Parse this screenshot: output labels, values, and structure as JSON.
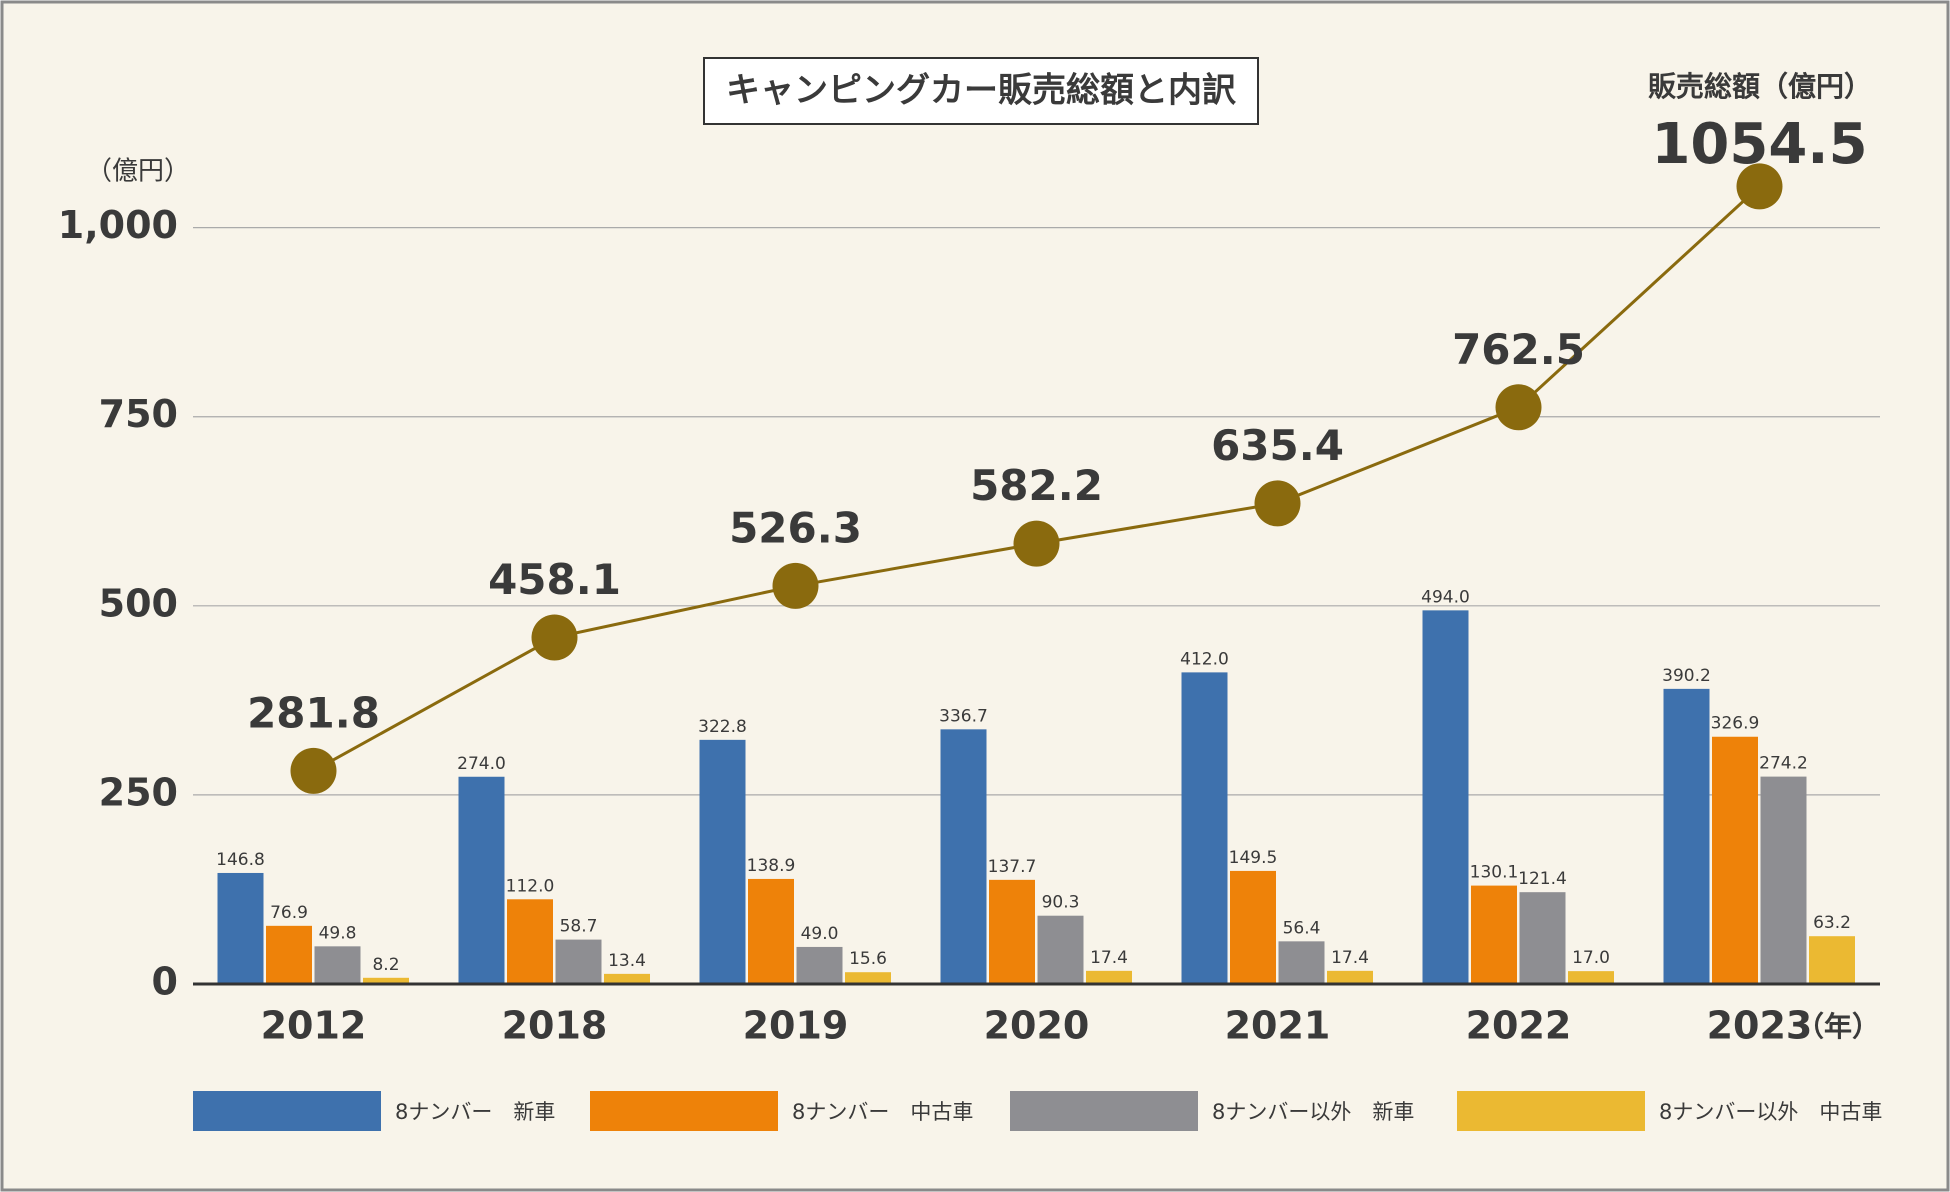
{
  "chart_data": {
    "type": "bar",
    "title": "キャンピングカー販売総額と内訳",
    "y_unit": "（億円）",
    "x_unit": "（年）",
    "categories": [
      "2012",
      "2018",
      "2019",
      "2020",
      "2021",
      "2022",
      "2023"
    ],
    "series": [
      {
        "name": "8ナンバー　新車",
        "color": "#3e71ad",
        "values": [
          146.8,
          274,
          322.8,
          336.7,
          412,
          494,
          390.2
        ],
        "value_labels": [
          "146.8",
          "274.0",
          "322.8",
          "336.7",
          "412.0",
          "494.0",
          "390.2"
        ]
      },
      {
        "name": "8ナンバー　中古車",
        "color": "#ee8209",
        "values": [
          76.9,
          112,
          138.9,
          137.7,
          149.5,
          130.1,
          326.9
        ],
        "value_labels": [
          "76.9",
          "112.0",
          "138.9",
          "137.7",
          "149.5",
          "130.1",
          "326.9"
        ]
      },
      {
        "name": "8ナンバー以外　新車",
        "color": "#8e8e92",
        "values": [
          49.8,
          58.7,
          49,
          90.3,
          56.4,
          121.4,
          274.2
        ],
        "value_labels": [
          "49.8",
          "58.7",
          "49.0",
          "90.3",
          "56.4",
          "121.4",
          "274.2"
        ]
      },
      {
        "name": "8ナンバー以外　中古車",
        "color": "#ebb932",
        "values": [
          8.2,
          13.4,
          15.6,
          17.4,
          17.4,
          17,
          63.2
        ],
        "value_labels": [
          "8.2",
          "13.4",
          "15.6",
          "17.4",
          "17.4",
          "17.0",
          "63.2"
        ]
      }
    ],
    "line": {
      "type": "line",
      "name": "販売総額（億円）",
      "color": "#8a6a0e",
      "values": [
        281.8,
        458.1,
        526.3,
        582.2,
        635.4,
        762.5,
        1054.5
      ]
    },
    "ylim": [
      0,
      1100
    ],
    "yticks": [
      0,
      250,
      500,
      750,
      {
        "value": 1000,
        "label": "1,000"
      }
    ],
    "grid": true,
    "legend": "bottom"
  }
}
